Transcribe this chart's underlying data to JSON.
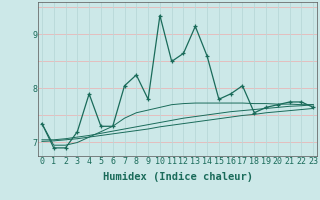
{
  "xlabel": "Humidex (Indice chaleur)",
  "x": [
    0,
    1,
    2,
    3,
    4,
    5,
    6,
    7,
    8,
    9,
    10,
    11,
    12,
    13,
    14,
    15,
    16,
    17,
    18,
    19,
    20,
    21,
    22,
    23
  ],
  "y_main": [
    7.35,
    6.9,
    6.9,
    7.2,
    7.9,
    7.3,
    7.3,
    8.05,
    8.25,
    7.8,
    9.35,
    8.5,
    8.65,
    9.15,
    8.6,
    7.8,
    7.9,
    8.05,
    7.55,
    7.65,
    7.7,
    7.75,
    7.75,
    7.65
  ],
  "y_smooth1": [
    7.35,
    6.95,
    6.95,
    7.0,
    7.1,
    7.2,
    7.3,
    7.45,
    7.55,
    7.6,
    7.65,
    7.7,
    7.72,
    7.73,
    7.73,
    7.73,
    7.73,
    7.73,
    7.72,
    7.72,
    7.71,
    7.71,
    7.7,
    7.7
  ],
  "y_smooth2": [
    7.05,
    7.05,
    7.07,
    7.1,
    7.13,
    7.17,
    7.21,
    7.25,
    7.29,
    7.33,
    7.37,
    7.41,
    7.45,
    7.48,
    7.51,
    7.54,
    7.57,
    7.59,
    7.61,
    7.63,
    7.65,
    7.67,
    7.68,
    7.7
  ],
  "y_smooth3": [
    7.02,
    7.03,
    7.05,
    7.07,
    7.1,
    7.13,
    7.16,
    7.19,
    7.22,
    7.25,
    7.29,
    7.32,
    7.35,
    7.38,
    7.41,
    7.44,
    7.47,
    7.5,
    7.52,
    7.55,
    7.57,
    7.59,
    7.61,
    7.63
  ],
  "ylim": [
    6.75,
    9.6
  ],
  "yticks": [
    7,
    8,
    9
  ],
  "xticks": [
    0,
    1,
    2,
    3,
    4,
    5,
    6,
    7,
    8,
    9,
    10,
    11,
    12,
    13,
    14,
    15,
    16,
    17,
    18,
    19,
    20,
    21,
    22,
    23
  ],
  "line_color": "#1a6b5a",
  "bg_color": "#cce8e8",
  "grid_h_color": "#e8b8b8",
  "grid_v_color": "#b8d8d8",
  "tick_fontsize": 6,
  "label_fontsize": 7.5
}
